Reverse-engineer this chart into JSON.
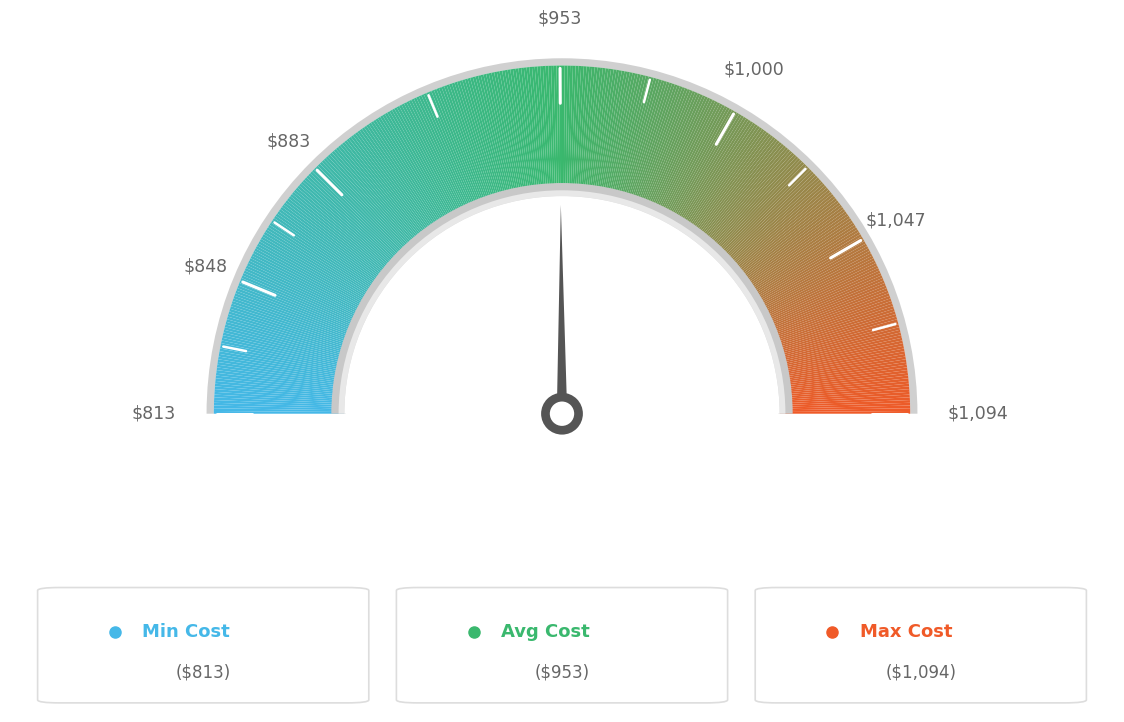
{
  "min_val": 813,
  "max_val": 1094,
  "avg_val": 953,
  "labels": [
    "$813",
    "$848",
    "$883",
    "$953",
    "$1,000",
    "$1,047",
    "$1,094"
  ],
  "label_values": [
    813,
    848,
    883,
    953,
    1000,
    1047,
    1094
  ],
  "min_cost_label": "Min Cost",
  "avg_cost_label": "Avg Cost",
  "max_cost_label": "Max Cost",
  "min_cost_value": "($813)",
  "avg_cost_value": "($953)",
  "max_cost_value": "($1,094)",
  "min_color": "#45b8e8",
  "avg_color": "#3ab86e",
  "max_color": "#f05a28",
  "background_color": "#ffffff",
  "needle_value": 953,
  "needle_color": "#555555",
  "outer_border_color": "#d0d0d0",
  "inner_border_color": "#cccccc",
  "tick_color": "#ffffff",
  "label_color": "#666666",
  "box_border_color": "#dddddd",
  "value_text_color": "#666666"
}
